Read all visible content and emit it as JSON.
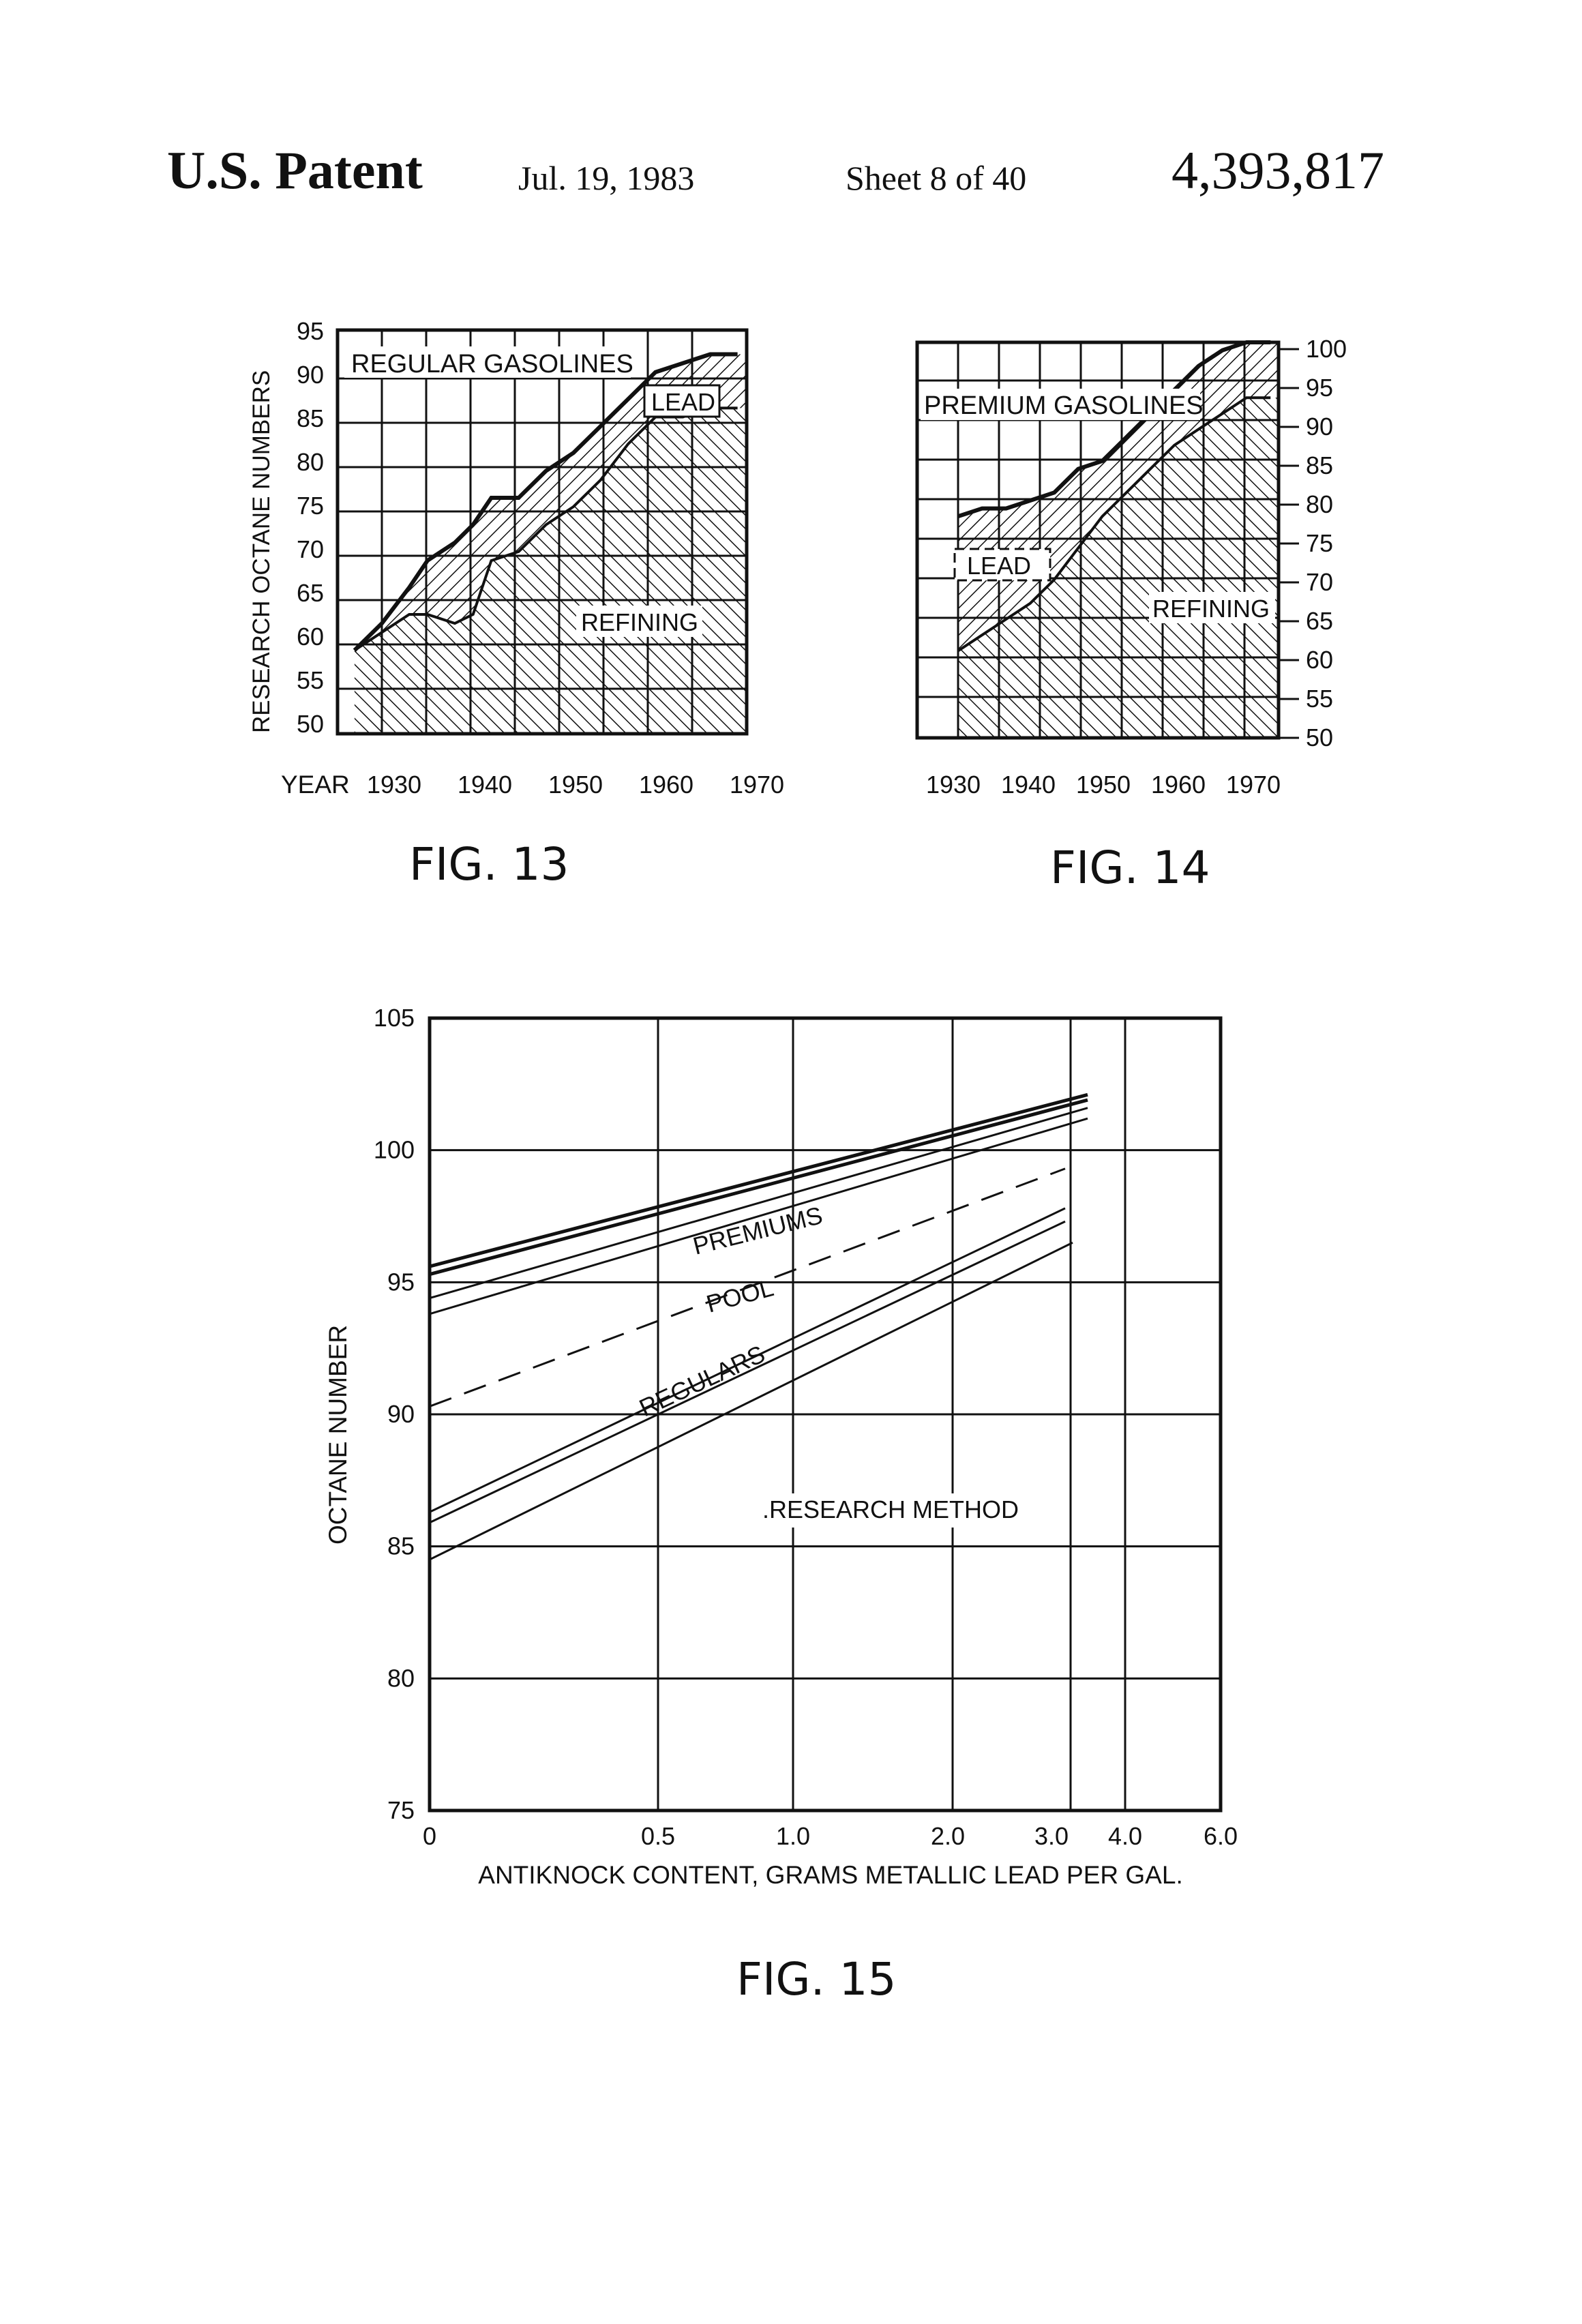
{
  "header": {
    "patent": "U.S. Patent",
    "date": "Jul. 19, 1983",
    "sheet": "Sheet 8 of 40",
    "number": "4,393,817"
  },
  "fig13": {
    "label": "FIG. 13",
    "ylabel": "RESEARCH OCTANE NUMBERS",
    "xlabel_prefix": "YEAR",
    "yticks": [
      "95",
      "90",
      "85",
      "80",
      "75",
      "70",
      "65",
      "60",
      "55",
      "50"
    ],
    "xticks": [
      "1930",
      "1940",
      "1950",
      "1960",
      "1970"
    ],
    "title": "REGULAR GASOLINES",
    "lead_label": "LEAD",
    "refining_label": "REFINING"
  },
  "fig14": {
    "label": "FIG. 14",
    "yticks": [
      "100",
      "95",
      "90",
      "85",
      "80",
      "75",
      "70",
      "65",
      "60",
      "55",
      "50"
    ],
    "xticks": [
      "1930",
      "1940",
      "1950",
      "1960",
      "1970"
    ],
    "title": "PREMIUM GASOLINES",
    "lead_label": "LEAD",
    "refining_label": "REFINING"
  },
  "chart_data": [
    {
      "type": "area",
      "ylabel": "RESEARCH OCTANE NUMBERS",
      "x_ticks": [
        1930,
        1940,
        1950,
        1960,
        1970
      ],
      "ylim": [
        50,
        95
      ],
      "grid": true,
      "annotations": [
        "REGULAR GASOLINES",
        "LEAD",
        "REFINING"
      ],
      "series": [
        {
          "name": "LEAD",
          "x": [
            1927,
            1930,
            1933,
            1935,
            1938,
            1940,
            1942,
            1945,
            1948,
            1951,
            1954,
            1957,
            1960,
            1963,
            1966,
            1969
          ],
          "values": [
            59,
            62,
            66,
            69,
            71,
            73,
            76,
            76,
            79,
            81,
            84,
            87,
            90,
            91,
            92,
            92
          ]
        },
        {
          "name": "REFINING",
          "x": [
            1927,
            1930,
            1933,
            1935,
            1938,
            1940,
            1942,
            1945,
            1948,
            1951,
            1954,
            1957,
            1960,
            1963,
            1966,
            1969
          ],
          "values": [
            59,
            61,
            63,
            63,
            62,
            63,
            69,
            70,
            73,
            75,
            78,
            82,
            85,
            85,
            86,
            86
          ]
        }
      ]
    },
    {
      "type": "area",
      "x_ticks": [
        1930,
        1940,
        1950,
        1960,
        1970
      ],
      "ylim": [
        50,
        100
      ],
      "grid": true,
      "annotations": [
        "PREMIUM GASOLINES",
        "LEAD",
        "REFINING"
      ],
      "series": [
        {
          "name": "LEAD",
          "x": [
            1930,
            1933,
            1936,
            1939,
            1942,
            1945,
            1948,
            1951,
            1954,
            1957,
            1960,
            1963,
            1966,
            1969
          ],
          "values": [
            78,
            79,
            79,
            80,
            81,
            84,
            85,
            88,
            91,
            94,
            97,
            99,
            100,
            100
          ]
        },
        {
          "name": "REFINING",
          "x": [
            1930,
            1933,
            1936,
            1939,
            1942,
            1945,
            1948,
            1951,
            1954,
            1957,
            1960,
            1963,
            1966,
            1969
          ],
          "values": [
            61,
            63,
            65,
            67,
            70,
            74,
            78,
            81,
            84,
            87,
            89,
            91,
            93,
            93
          ]
        }
      ]
    },
    {
      "type": "line",
      "title": "FIG. 15",
      "xlabel": "ANTIKNOCK CONTENT, GRAMS METALLIC LEAD PER GAL.",
      "ylabel": "OCTANE NUMBER",
      "x_ticks": [
        "0",
        "0.5",
        "1.0",
        "2.0",
        "3.0",
        "4.0",
        "6.0"
      ],
      "y_ticks": [
        "105",
        "100",
        "95",
        "90",
        "85",
        "80",
        "75"
      ],
      "ylim": [
        75,
        105
      ],
      "grid": true,
      "annotations": [
        "PREMIUMS",
        "POOL",
        "REGULARS",
        ".RESEARCH METHOD"
      ],
      "series": [
        {
          "name": "PREMIUMS",
          "x": [
            0,
            3.5
          ],
          "values": [
            95.6,
            102.1
          ]
        },
        {
          "name": "PREMIUMS",
          "x": [
            0,
            3.5
          ],
          "values": [
            95.3,
            101.9
          ]
        },
        {
          "name": "PREMIUMS",
          "x": [
            0,
            3.5
          ],
          "values": [
            94.4,
            101.6
          ]
        },
        {
          "name": "PREMIUMS",
          "x": [
            0,
            3.5
          ],
          "values": [
            93.8,
            101.2
          ]
        },
        {
          "name": "POOL",
          "x": [
            0,
            3.2
          ],
          "values": [
            90.3,
            99.3
          ]
        },
        {
          "name": "REGULARS",
          "x": [
            0,
            3.2
          ],
          "values": [
            86.3,
            97.8
          ]
        },
        {
          "name": "REGULARS",
          "x": [
            0,
            3.2
          ],
          "values": [
            85.9,
            97.3
          ]
        },
        {
          "name": "REGULARS",
          "x": [
            0,
            3.3
          ],
          "values": [
            84.5,
            96.5
          ]
        }
      ]
    }
  ],
  "fig15": {
    "label": "FIG. 15",
    "ylabel": "OCTANE NUMBER",
    "xlabel": "ANTIKNOCK CONTENT, GRAMS METALLIC LEAD PER GAL.",
    "yticks": [
      "105",
      "100",
      "95",
      "90",
      "85",
      "80",
      "75"
    ],
    "xticks": [
      "0",
      "0.5",
      "1.0",
      "2.0",
      "3.0",
      "4.0",
      "6.0"
    ],
    "premiums_label": "PREMIUMS",
    "pool_label": "POOL",
    "regulars_label": "REGULARS",
    "method_label": ".RESEARCH METHOD"
  }
}
